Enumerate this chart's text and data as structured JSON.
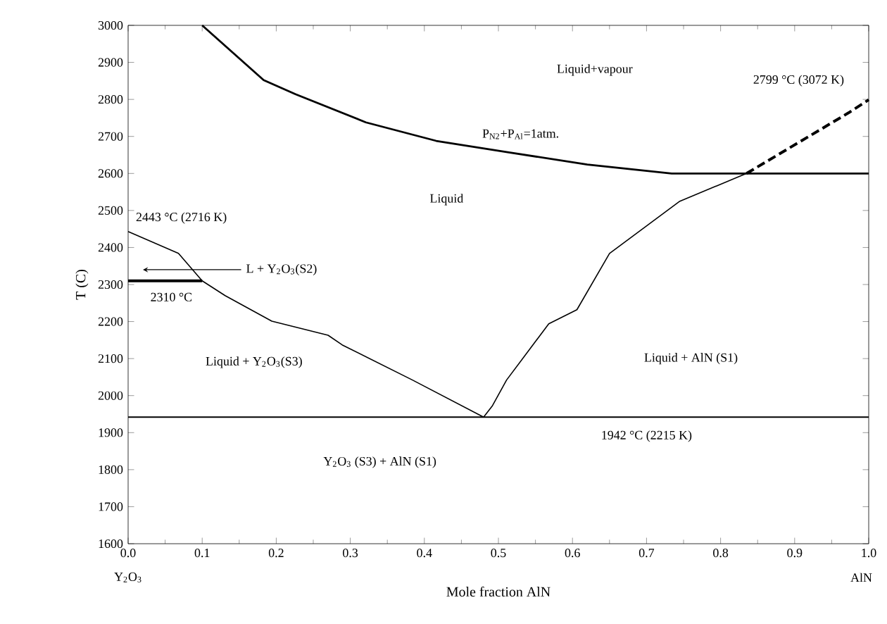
{
  "chart_data": {
    "type": "line",
    "xlabel": "Mole fraction AlN",
    "ylabel": "T (C)",
    "xlim": [
      0,
      1
    ],
    "ylim": [
      1600,
      3000
    ],
    "xticks": [
      {
        "value": 0,
        "label": "0.0"
      },
      0.1,
      0.2,
      0.3,
      0.4,
      0.5,
      0.6,
      0.7,
      0.8,
      0.9,
      {
        "value": 1,
        "label": "1.0"
      }
    ],
    "yticks": [
      1600,
      1700,
      1800,
      1900,
      2000,
      2100,
      2200,
      2300,
      2400,
      2500,
      2600,
      2700,
      2800,
      2900,
      3000
    ],
    "grid": false,
    "marker": "none",
    "series": [
      {
        "color": "#000000",
        "x": [
          0.1,
          0.183,
          0.226,
          0.321,
          0.416,
          0.511,
          0.62,
          0.734,
          1.0
        ],
        "values": [
          3000,
          2852,
          2814,
          2738,
          2688,
          2658,
          2624,
          2600,
          2600
        ]
      },
      {
        "color": "#000000",
        "x": [
          0,
          0.068,
          0.1,
          0.131,
          0.194,
          0.27,
          0.289,
          0.384,
          0.48
        ],
        "values": [
          2443,
          2384,
          2310,
          2270,
          2201,
          2163,
          2137,
          2042,
          1942
        ]
      },
      {
        "color": "#000000",
        "x": [
          0,
          0.1
        ],
        "values": [
          2310,
          2310
        ]
      },
      {
        "color": "#000000",
        "x": [
          0.48,
          0.492,
          0.511,
          0.568,
          0.606,
          0.65,
          0.745,
          0.835
        ],
        "values": [
          1942,
          1973,
          2042,
          2194,
          2232,
          2384,
          2525,
          2600
        ]
      },
      {
        "color": "#000000",
        "line_style": "dashed",
        "x": [
          0.835,
          0.973,
          1.0
        ],
        "values": [
          2600,
          2764,
          2799
        ]
      },
      {
        "color": "#000000",
        "x": [
          0,
          1
        ],
        "values": [
          1942,
          1942
        ]
      }
    ],
    "annotations": [
      "Liquid+vapour",
      "P$_{N2}$+P$_{Al}$=1atm.",
      "Liquid",
      {
        "text": "2443 °C (2716 K)",
        "x": 0,
        "y": 2443
      },
      {
        "text": "L + Y$_{2}$O$_{3}$(S2)",
        "x": 0.02,
        "y": 2340
      },
      {
        "text": "2310 °C",
        "x": 0.1,
        "y": 2310
      },
      "Liquid + Y$_{2}$O$_{3}$(S3)",
      "Liquid + AlN (S1)",
      {
        "text": "1942 °C (2215 K)",
        "x": 0.7,
        "y": 1942
      },
      "Y$_{2}$O$_{3}$ (S3) + AlN (S1)",
      {
        "text": "2799 °C (3072 K)",
        "x": 1.0,
        "y": 2799
      },
      "Y$_{2}$O$_{3}$",
      "AlN"
    ]
  }
}
